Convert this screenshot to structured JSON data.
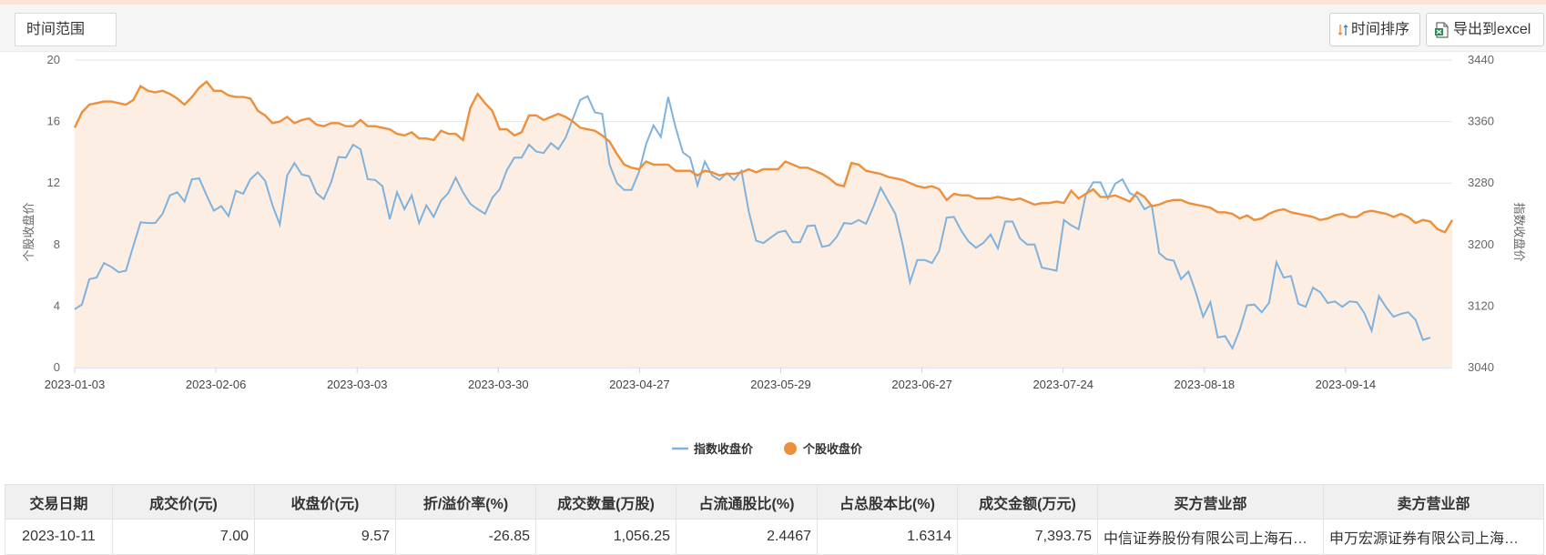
{
  "toolbar": {
    "range_label": "时间范围",
    "sort_label": "时间排序",
    "export_label": "导出到excel"
  },
  "colors": {
    "index_line": "#7fb2dc",
    "stock_line": "#ee8f3b",
    "stock_area": "#fdeee3"
  },
  "chart_data": {
    "type": "line",
    "x_tick_labels": [
      "2023-01-03",
      "2023-02-06",
      "2023-03-03",
      "2023-03-30",
      "2023-04-27",
      "2023-05-29",
      "2023-06-27",
      "2023-07-24",
      "2023-08-18",
      "2023-09-14"
    ],
    "y_left": {
      "label": "个股收盘价",
      "min": 0,
      "max": 20,
      "ticks": [
        0,
        4,
        8,
        12,
        16,
        20
      ]
    },
    "y_right": {
      "label": "指数收盘价",
      "min": 3040,
      "max": 3440,
      "ticks": [
        3040,
        3120,
        3200,
        3280,
        3360,
        3440
      ]
    },
    "legend_position": "bottom-center",
    "grid": true,
    "series": [
      {
        "name": "指数收盘价",
        "axis": "right",
        "values": [
          3116,
          3122,
          3155,
          3157,
          3176,
          3171,
          3164,
          3166,
          3198,
          3229,
          3228,
          3228,
          3240,
          3264,
          3268,
          3256,
          3285,
          3286,
          3264,
          3244,
          3250,
          3237,
          3270,
          3266,
          3285,
          3294,
          3283,
          3251,
          3226,
          3290,
          3306,
          3291,
          3289,
          3267,
          3259,
          3281,
          3314,
          3313,
          3330,
          3324,
          3285,
          3284,
          3276,
          3233,
          3268,
          3246,
          3264,
          3228,
          3251,
          3236,
          3257,
          3267,
          3287,
          3268,
          3253,
          3246,
          3240,
          3261,
          3272,
          3297,
          3313,
          3313,
          3330,
          3321,
          3319,
          3332,
          3324,
          3339,
          3364,
          3388,
          3393,
          3372,
          3370,
          3304,
          3280,
          3271,
          3271,
          3294,
          3331,
          3355,
          3340,
          3392,
          3353,
          3320,
          3313,
          3277,
          3308,
          3290,
          3284,
          3293,
          3284,
          3296,
          3243,
          3205,
          3202,
          3209,
          3216,
          3218,
          3203,
          3203,
          3224,
          3225,
          3197,
          3199,
          3210,
          3228,
          3227,
          3232,
          3227,
          3249,
          3274,
          3257,
          3240,
          3200,
          3151,
          3180,
          3180,
          3176,
          3192,
          3235,
          3236,
          3218,
          3204,
          3196,
          3202,
          3213,
          3195,
          3230,
          3230,
          3208,
          3200,
          3200,
          3170,
          3168,
          3166,
          3232,
          3225,
          3220,
          3265,
          3281,
          3281,
          3260,
          3279,
          3285,
          3267,
          3262,
          3246,
          3251,
          3189,
          3181,
          3179,
          3155,
          3165,
          3138,
          3106,
          3125,
          3079,
          3081,
          3065,
          3089,
          3121,
          3122,
          3112,
          3124,
          3177,
          3157,
          3159,
          3123,
          3119,
          3144,
          3138,
          3124,
          3126,
          3119,
          3126,
          3125,
          3111,
          3088,
          3133,
          3118,
          3106,
          3110,
          3112,
          3102,
          3076,
          3079
        ]
      },
      {
        "name": "个股收盘价",
        "axis": "left",
        "values": [
          15.6,
          16.6,
          17.1,
          17.2,
          17.3,
          17.3,
          17.2,
          17.1,
          17.4,
          18.3,
          18.0,
          17.9,
          18.0,
          17.8,
          17.5,
          17.1,
          17.6,
          18.2,
          18.6,
          18.0,
          18.0,
          17.7,
          17.6,
          17.6,
          17.5,
          16.7,
          16.4,
          15.9,
          16.0,
          16.3,
          15.9,
          16.1,
          16.2,
          15.8,
          15.7,
          15.9,
          15.9,
          15.7,
          15.7,
          16.1,
          15.7,
          15.7,
          15.6,
          15.5,
          15.2,
          15.1,
          15.3,
          14.9,
          14.9,
          14.8,
          15.4,
          15.2,
          15.2,
          14.8,
          16.9,
          17.8,
          17.2,
          16.7,
          15.5,
          15.5,
          15.1,
          15.3,
          16.4,
          16.4,
          16.1,
          16.3,
          16.5,
          16.3,
          16.0,
          15.6,
          15.5,
          15.4,
          15.1,
          14.7,
          13.9,
          13.2,
          13.0,
          12.9,
          13.4,
          13.2,
          13.2,
          13.2,
          12.8,
          12.8,
          12.8,
          12.5,
          12.8,
          12.7,
          12.5,
          12.6,
          12.6,
          12.7,
          12.9,
          12.7,
          12.9,
          12.9,
          12.9,
          13.4,
          13.2,
          13.0,
          13.0,
          12.8,
          12.6,
          12.3,
          11.9,
          11.8,
          13.3,
          13.2,
          12.8,
          12.7,
          12.6,
          12.4,
          12.3,
          12.2,
          12.0,
          11.8,
          11.7,
          11.8,
          11.6,
          10.9,
          11.3,
          11.2,
          11.2,
          11.0,
          11.0,
          11.0,
          11.1,
          11.0,
          10.9,
          11.0,
          10.8,
          10.6,
          10.7,
          10.7,
          10.8,
          10.7,
          11.5,
          11.0,
          11.3,
          11.6,
          11.1,
          11.1,
          11.2,
          11.0,
          10.8,
          11.4,
          11.1,
          10.5,
          10.6,
          10.8,
          10.9,
          10.9,
          10.7,
          10.6,
          10.5,
          10.4,
          10.1,
          10.1,
          10.0,
          9.7,
          9.9,
          9.6,
          9.7,
          10.0,
          10.2,
          10.3,
          10.1,
          10.0,
          9.9,
          9.8,
          9.6,
          9.7,
          9.9,
          10.0,
          9.8,
          9.8,
          10.1,
          10.2,
          10.1,
          10.0,
          9.8,
          10.0,
          9.8,
          9.4,
          9.6,
          9.5,
          9.0,
          8.8,
          9.6
        ]
      }
    ]
  },
  "table": {
    "headers": [
      "交易日期",
      "成交价(元)",
      "收盘价(元)",
      "折/溢价率(%)",
      "成交数量(万股)",
      "占流通股比(%)",
      "占总股本比(%)",
      "成交金额(万元)",
      "买方营业部",
      "卖方营业部"
    ],
    "rows": [
      [
        "2023-10-11",
        "7.00",
        "9.57",
        "-26.85",
        "1,056.25",
        "2.4467",
        "1.6314",
        "7,393.75",
        "中信证券股份有限公司上海石…",
        "申万宏源证券有限公司上海…"
      ]
    ]
  }
}
